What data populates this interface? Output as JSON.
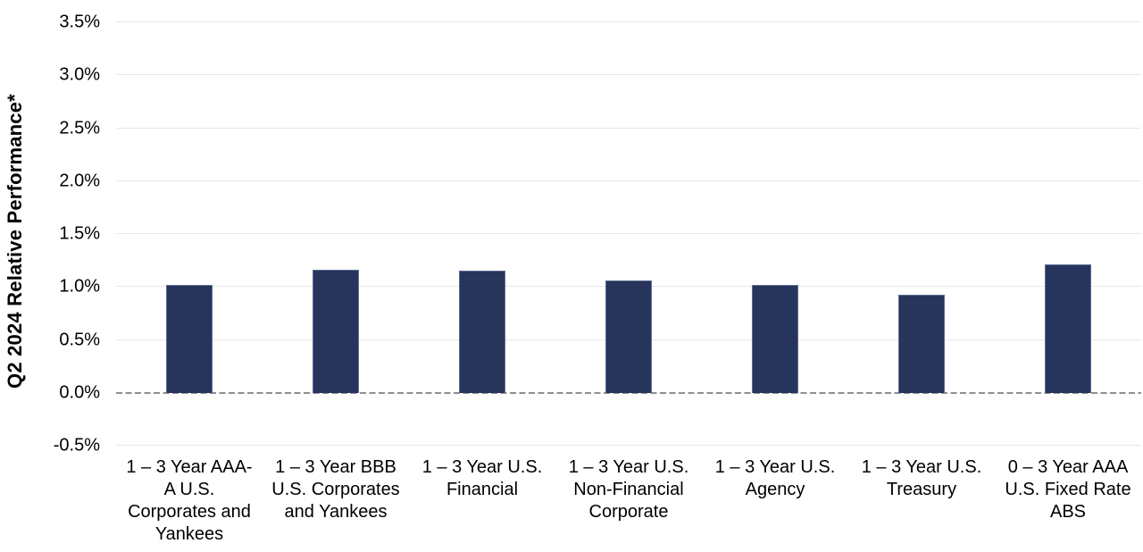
{
  "chart_data": {
    "type": "bar",
    "title": "",
    "xlabel": "",
    "ylabel": "Q2 2024 Relative Performance*",
    "categories": [
      "1 – 3 Year AAA-A U.S. Corporates and Yankees",
      "1 – 3 Year BBB U.S. Corporates and Yankees",
      "1 – 3 Year U.S. Financial",
      "1 – 3 Year U.S. Non-Financial Corporate",
      "1 – 3 Year U.S. Agency",
      "1 – 3 Year U.S. Treasury",
      "0 – 3 Year AAA U.S. Fixed Rate ABS"
    ],
    "category_lines": [
      [
        "1 – 3 Year AAA-",
        "A U.S.",
        "Corporates and",
        "Yankees"
      ],
      [
        "1 – 3 Year BBB",
        "U.S. Corporates",
        "and Yankees"
      ],
      [
        "1 – 3 Year U.S.",
        "Financial"
      ],
      [
        "1 – 3 Year U.S.",
        "Non-Financial",
        "Corporate"
      ],
      [
        "1 – 3 Year U.S.",
        "Agency"
      ],
      [
        "1 – 3 Year U.S.",
        "Treasury"
      ],
      [
        "0 – 3 Year AAA",
        "U.S. Fixed Rate",
        "ABS"
      ]
    ],
    "values": [
      1.02,
      1.16,
      1.15,
      1.06,
      1.02,
      0.93,
      1.21
    ],
    "ylim": [
      -0.5,
      3.5
    ],
    "y_ticks": [
      {
        "value": 3.5,
        "label": "3.5%"
      },
      {
        "value": 3.0,
        "label": "3.0%"
      },
      {
        "value": 2.5,
        "label": "2.5%"
      },
      {
        "value": 2.0,
        "label": "2.0%"
      },
      {
        "value": 1.5,
        "label": "1.5%"
      },
      {
        "value": 1.0,
        "label": "1.0%"
      },
      {
        "value": 0.5,
        "label": "0.5%"
      },
      {
        "value": 0.0,
        "label": "0.0%"
      },
      {
        "value": -0.5,
        "label": "-0.5%"
      }
    ],
    "zero_line_value": 0.0,
    "grid": "horizontal light gridlines, dashed line at 0.0%",
    "legend": "none",
    "colors": {
      "bar_fill": "#27345c",
      "bar_border": "#5f6d92",
      "gridline": "#e7e7e7",
      "zero_line": "#8f8f8f",
      "text": "#000000",
      "background": "#ffffff"
    }
  }
}
